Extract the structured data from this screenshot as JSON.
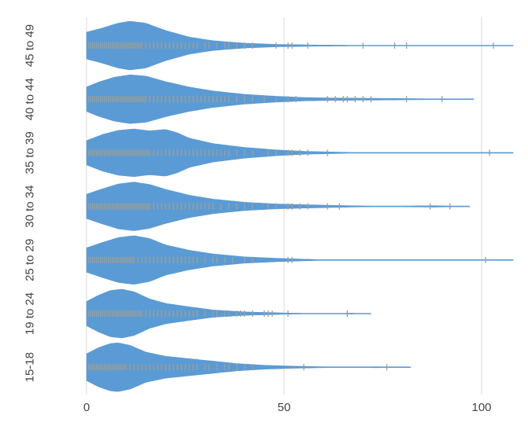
{
  "chart_data": {
    "type": "violin",
    "orientation": "horizontal",
    "title": "",
    "xlabel": "",
    "ylabel": "",
    "xlim": [
      0,
      105
    ],
    "x_ticks": [
      "0",
      "50",
      "100"
    ],
    "x_tick_values": [
      0,
      50,
      100
    ],
    "grid": true,
    "colors": {
      "violin_fill": "#5b9bd5",
      "point_mark": "#a39e8c",
      "grid": "#d9d9d9",
      "text": "#444444"
    },
    "categories": [
      "45 to 49",
      "40 to 44",
      "35 to 39",
      "30 to 34",
      "25 to 29",
      "19 to 24",
      "15-18"
    ],
    "series": [
      {
        "category": "45 to 49",
        "range": [
          0,
          108
        ],
        "density": [
          [
            0,
            0.55
          ],
          [
            4,
            0.72
          ],
          [
            8,
            0.92
          ],
          [
            11,
            1.0
          ],
          [
            15,
            0.92
          ],
          [
            20,
            0.62
          ],
          [
            26,
            0.35
          ],
          [
            32,
            0.2
          ],
          [
            40,
            0.1
          ],
          [
            48,
            0.05
          ],
          [
            58,
            0.025
          ],
          [
            70,
            0.012
          ],
          [
            78,
            0.01
          ],
          [
            87,
            0.006
          ],
          [
            92,
            0.002
          ],
          [
            97,
            0.004
          ],
          [
            102,
            0.01
          ],
          [
            108,
            0.002
          ]
        ],
        "points": [
          0.5,
          1,
          1.5,
          2,
          2.5,
          3,
          3.5,
          4,
          4.5,
          5,
          5.5,
          6,
          6.5,
          7,
          7.5,
          8,
          8.5,
          9,
          9.5,
          10,
          10.5,
          11,
          11.5,
          12,
          12.5,
          13,
          13.5,
          14,
          15,
          16,
          17,
          18,
          19,
          20,
          21,
          22,
          23,
          24,
          25,
          26,
          27,
          28,
          30,
          31,
          33,
          35,
          36,
          38,
          40,
          42,
          48,
          51,
          52,
          56,
          70,
          78,
          81,
          103
        ]
      },
      {
        "category": "40 to 44",
        "range": [
          0,
          98
        ],
        "density": [
          [
            0,
            0.5
          ],
          [
            3,
            0.7
          ],
          [
            7,
            0.9
          ],
          [
            11,
            1.0
          ],
          [
            15,
            0.95
          ],
          [
            20,
            0.72
          ],
          [
            26,
            0.5
          ],
          [
            32,
            0.34
          ],
          [
            40,
            0.2
          ],
          [
            48,
            0.12
          ],
          [
            55,
            0.07
          ],
          [
            62,
            0.05
          ],
          [
            70,
            0.04
          ],
          [
            78,
            0.03
          ],
          [
            85,
            0.02
          ],
          [
            90,
            0.012
          ],
          [
            95,
            0.006
          ],
          [
            98,
            0.002
          ]
        ],
        "points": [
          0.5,
          1,
          1.5,
          2,
          2.5,
          3,
          3.5,
          4,
          4.5,
          5,
          5.5,
          6,
          6.5,
          7,
          7.5,
          8,
          8.5,
          9,
          9.5,
          10,
          10.5,
          11,
          11.5,
          12,
          12.5,
          13,
          13.5,
          14,
          14.5,
          15,
          16,
          17,
          18,
          19,
          20,
          21,
          22,
          23,
          24,
          25,
          26,
          27,
          28,
          29,
          30,
          31,
          32,
          33,
          34,
          35,
          36,
          38,
          40,
          42,
          45,
          48,
          51,
          53,
          61,
          63,
          65,
          66,
          68,
          70,
          72,
          81,
          90
        ]
      },
      {
        "category": "35 to 39",
        "range": [
          0,
          108
        ],
        "density": [
          [
            0,
            0.5
          ],
          [
            4,
            0.75
          ],
          [
            8,
            0.92
          ],
          [
            12,
            0.98
          ],
          [
            16,
            0.9
          ],
          [
            20,
            0.96
          ],
          [
            23,
            0.82
          ],
          [
            26,
            0.6
          ],
          [
            32,
            0.38
          ],
          [
            40,
            0.22
          ],
          [
            48,
            0.12
          ],
          [
            55,
            0.06
          ],
          [
            62,
            0.035
          ],
          [
            68,
            0.012
          ],
          [
            72,
            0.002
          ],
          [
            95,
            0.002
          ],
          [
            102,
            0.012
          ],
          [
            108,
            0.002
          ]
        ],
        "points": [
          0.5,
          1,
          1.5,
          2,
          2.5,
          3,
          3.5,
          4,
          4.5,
          5,
          5.5,
          6,
          6.5,
          7,
          7.5,
          8,
          8.5,
          9,
          9.5,
          10,
          10.5,
          11,
          11.5,
          12,
          12.5,
          13,
          13.5,
          14,
          14.5,
          15,
          15.5,
          16,
          17,
          18,
          19,
          20,
          21,
          22,
          23,
          24,
          25,
          26,
          27,
          28,
          29,
          30,
          31,
          32,
          33,
          34,
          35,
          36,
          38,
          40,
          42,
          46,
          48,
          51,
          52,
          54,
          56,
          61,
          102
        ]
      },
      {
        "category": "30 to 34",
        "range": [
          0,
          97
        ],
        "density": [
          [
            0,
            0.5
          ],
          [
            4,
            0.72
          ],
          [
            8,
            0.92
          ],
          [
            12,
            1.0
          ],
          [
            16,
            0.9
          ],
          [
            20,
            0.7
          ],
          [
            26,
            0.46
          ],
          [
            32,
            0.3
          ],
          [
            40,
            0.17
          ],
          [
            48,
            0.1
          ],
          [
            55,
            0.07
          ],
          [
            62,
            0.045
          ],
          [
            68,
            0.025
          ],
          [
            75,
            0.01
          ],
          [
            82,
            0.02
          ],
          [
            88,
            0.03
          ],
          [
            93,
            0.015
          ],
          [
            97,
            0.002
          ]
        ],
        "points": [
          0.5,
          1,
          1.5,
          2,
          2.5,
          3,
          3.5,
          4,
          4.5,
          5,
          5.5,
          6,
          6.5,
          7,
          7.5,
          8,
          8.5,
          9,
          9.5,
          10,
          10.5,
          11,
          11.5,
          12,
          12.5,
          13,
          13.5,
          14,
          14.5,
          15,
          15.5,
          16,
          17,
          18,
          19,
          20,
          21,
          22,
          23,
          24,
          25,
          26,
          27,
          28,
          29,
          30,
          31,
          32,
          34,
          36,
          38,
          40,
          42,
          46,
          48,
          51,
          52,
          54,
          56,
          61,
          64,
          87,
          92
        ]
      },
      {
        "category": "25 to 29",
        "range": [
          0,
          108
        ],
        "density": [
          [
            0,
            0.5
          ],
          [
            4,
            0.72
          ],
          [
            8,
            0.92
          ],
          [
            12,
            1.0
          ],
          [
            16,
            0.88
          ],
          [
            20,
            0.62
          ],
          [
            26,
            0.4
          ],
          [
            32,
            0.25
          ],
          [
            40,
            0.13
          ],
          [
            48,
            0.07
          ],
          [
            55,
            0.035
          ],
          [
            60,
            0.012
          ],
          [
            64,
            0.002
          ],
          [
            95,
            0.002
          ],
          [
            101,
            0.012
          ],
          [
            108,
            0.002
          ]
        ],
        "points": [
          0.5,
          1,
          1.5,
          2,
          2.5,
          3,
          3.5,
          4,
          4.5,
          5,
          5.5,
          6,
          6.5,
          7,
          7.5,
          8,
          8.5,
          9,
          9.5,
          10,
          10.5,
          11,
          11.5,
          12,
          13,
          14,
          15,
          16,
          17,
          18,
          19,
          20,
          21,
          22,
          23,
          24,
          25,
          26,
          27,
          28,
          30,
          32,
          33,
          35,
          37,
          40,
          42,
          51,
          52,
          101
        ]
      },
      {
        "category": "19 to 24",
        "range": [
          0,
          72
        ],
        "density": [
          [
            0,
            0.5
          ],
          [
            3,
            0.75
          ],
          [
            6,
            0.95
          ],
          [
            9,
            1.0
          ],
          [
            12,
            0.9
          ],
          [
            16,
            0.6
          ],
          [
            20,
            0.42
          ],
          [
            26,
            0.28
          ],
          [
            32,
            0.15
          ],
          [
            40,
            0.07
          ],
          [
            47,
            0.04
          ],
          [
            52,
            0.02
          ],
          [
            58,
            0.01
          ],
          [
            63,
            0.012
          ],
          [
            67,
            0.02
          ],
          [
            72,
            0.002
          ]
        ],
        "points": [
          0.5,
          1,
          1.5,
          2,
          2.5,
          3,
          3.5,
          4,
          4.5,
          5,
          5.5,
          6,
          6.5,
          7,
          7.5,
          8,
          8.5,
          9,
          9.5,
          10,
          10.5,
          11,
          11.5,
          12,
          12.5,
          13,
          13.5,
          14,
          15,
          16,
          17,
          18,
          19,
          20,
          21,
          22,
          23,
          24,
          25,
          26,
          27,
          28,
          30,
          32,
          33,
          35,
          36,
          38,
          39,
          40,
          42,
          45,
          46,
          47,
          51,
          66
        ]
      },
      {
        "category": "15-18",
        "range": [
          0,
          82
        ],
        "density": [
          [
            0,
            0.55
          ],
          [
            3,
            0.8
          ],
          [
            6,
            0.97
          ],
          [
            8,
            1.0
          ],
          [
            11,
            0.9
          ],
          [
            15,
            0.62
          ],
          [
            20,
            0.45
          ],
          [
            26,
            0.35
          ],
          [
            32,
            0.25
          ],
          [
            38,
            0.15
          ],
          [
            45,
            0.08
          ],
          [
            52,
            0.045
          ],
          [
            58,
            0.025
          ],
          [
            63,
            0.012
          ],
          [
            68,
            0.01
          ],
          [
            73,
            0.02
          ],
          [
            77,
            0.015
          ],
          [
            82,
            0.002
          ]
        ],
        "points": [
          0.5,
          1,
          1.5,
          2,
          2.5,
          3,
          3.5,
          4,
          4.5,
          5,
          5.5,
          6,
          6.5,
          7,
          7.5,
          8,
          8.5,
          9,
          9.5,
          10,
          11,
          12,
          13,
          14,
          15,
          16,
          17,
          18,
          19,
          20,
          21,
          22,
          23,
          24,
          25,
          26,
          27,
          28,
          30,
          31,
          33,
          35,
          36,
          38,
          40,
          42,
          55,
          76
        ]
      }
    ]
  }
}
